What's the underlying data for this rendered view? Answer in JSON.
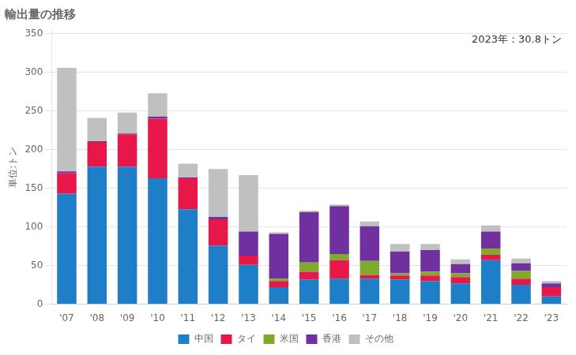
{
  "chart_data": {
    "type": "bar",
    "title": "輸出量の推移",
    "ylabel": "単位:トン",
    "annotations": [
      "2023年：30.8トン"
    ],
    "categories": [
      "'07",
      "'08",
      "'09",
      "'10",
      "'11",
      "'12",
      "'13",
      "'14",
      "'15",
      "'16",
      "'17",
      "'18",
      "'19",
      "'20",
      "'21",
      "'22",
      "'23"
    ],
    "series": [
      {
        "name": "中国",
        "color": "#1e7ec8",
        "values": [
          143,
          178,
          178,
          163,
          123,
          76,
          51,
          22,
          32,
          33,
          33,
          32,
          30,
          27,
          57,
          25,
          10
        ]
      },
      {
        "name": "タイ",
        "color": "#e8174a",
        "values": [
          27,
          32,
          42,
          77,
          40,
          34,
          12,
          8,
          10,
          24,
          5,
          5,
          7,
          8,
          7,
          8,
          12
        ]
      },
      {
        "name": "米国",
        "color": "#7faa2e",
        "values": [
          0,
          0,
          0,
          0,
          0,
          0,
          0,
          3,
          12,
          8,
          18,
          3,
          5,
          5,
          8,
          10,
          0
        ]
      },
      {
        "name": "香港",
        "color": "#7030a0",
        "values": [
          2,
          1,
          1,
          3,
          1,
          3,
          31,
          58,
          65,
          62,
          45,
          28,
          28,
          12,
          22,
          10,
          5
        ]
      },
      {
        "name": "その他",
        "color": "#c0c0c0",
        "values": [
          134,
          30,
          27,
          30,
          18,
          62,
          73,
          2,
          2,
          2,
          6,
          10,
          8,
          6,
          8,
          6,
          3
        ]
      }
    ],
    "stacked": true,
    "ylim": [
      0,
      355
    ],
    "yticks": [
      0,
      50,
      100,
      150,
      200,
      250,
      300,
      350
    ],
    "grid": true,
    "legend": "bottom"
  }
}
